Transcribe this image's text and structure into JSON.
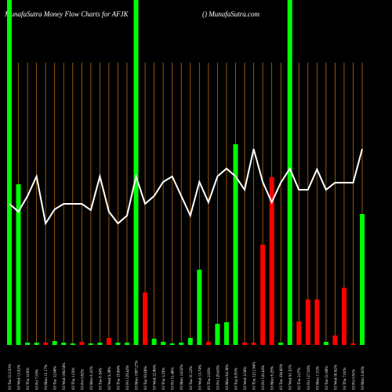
{
  "chart_data": {
    "type": "bar",
    "title": "MunafaSutra  Money Flow  Charts for AFJK",
    "subtitle": "() MunafaSutra.com",
    "categories": [
      "03 Tue 513.93%",
      "03 Wed 13.02%",
      "03 Thu 3.00%",
      "03 Fri 7.03%",
      "03 Mon 11.17%",
      "03 Tue 12.66%",
      "03 Wed 106.04%",
      "03 Thu 1.03%",
      "03 Fri 0.82%",
      "03 Mon 0.32%",
      "03 Tue 0.34%",
      "03 Wed 9.38%",
      "03 Thu 19.84%",
      "03 Fri 129.42%",
      "03 Mon 1587.27%",
      "03 Tue 93.66%",
      "03 Wed 22.86%",
      "03 Thu 3.29%",
      "03 Fri 11.46%",
      "03 Mon 14.92%",
      "03 Tue 31.23%",
      "03 Wed 13.74%",
      "03 Thu 2.63%",
      "03 Fri 129.63%",
      "03 Mon 94.36%",
      "03 Tue 6.93%",
      "03 Wed 3.56%",
      "03 Thu 1211.94%",
      "03 Fri 120.43%",
      "03 Mon 9.29%",
      "03 Tue 194.60%",
      "03 Wed 61.32%",
      "03 Thu 2.07%",
      "03 Fri 127.93%",
      "03 Mon 1.53%",
      "03 Tue 51.66%",
      "03 Wed 50.62%",
      "03 Thu 7.61%",
      "03 Fri 0.91%",
      "03 Mon 2.00%"
    ],
    "series": [
      {
        "name": "Money Flow",
        "colors": [
          "#00ff00",
          "#00ff00",
          "#00ff00",
          "#00ff00",
          "#ff0000",
          "#00ff00",
          "#00ff00",
          "#00ff00",
          "#ff0000",
          "#00ff00",
          "#00ff00",
          "#ff0000",
          "#00ff00",
          "#00ff00",
          "#00ff00",
          "#ff0000",
          "#00ff00",
          "#00ff00",
          "#00ff00",
          "#00ff00",
          "#00ff00",
          "#00ff00",
          "#ff0000",
          "#00ff00",
          "#00ff00",
          "#00ff00",
          "#ff0000",
          "#ff0000",
          "#ff0000",
          "#ff0000",
          "#00ff00",
          "#00ff00",
          "#ff0000",
          "#ff0000",
          "#ff0000",
          "#00ff00",
          "#ff0000",
          "#ff0000",
          "#ff0000",
          "#00ff00"
        ],
        "values": [
          440,
          205,
          3,
          3,
          3,
          5,
          3,
          2,
          4,
          2,
          3,
          9,
          3,
          3,
          440,
          67,
          8,
          4,
          2,
          3,
          9,
          96,
          4,
          27,
          29,
          256,
          3,
          3,
          128,
          214,
          3,
          440,
          30,
          58,
          58,
          4,
          12,
          73,
          2,
          167
        ]
      },
      {
        "name": "Price",
        "color": "#ffffff",
        "axis": "y2",
        "values": [
          240,
          230,
          250,
          275,
          215,
          233,
          240,
          240,
          240,
          232,
          275,
          230,
          215,
          225,
          275,
          240,
          250,
          268,
          275,
          250,
          225,
          268,
          242,
          275,
          285,
          275,
          258,
          310,
          268,
          242,
          267,
          285,
          258,
          258,
          284,
          258,
          267,
          267,
          267,
          310
        ]
      }
    ],
    "ylim": [
      0,
      440
    ],
    "y2lim": [
      0,
      500
    ],
    "grid": true,
    "grid_color": "#b8690f"
  }
}
